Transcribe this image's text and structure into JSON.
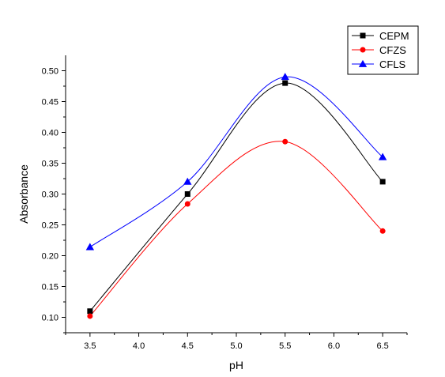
{
  "chart_data": {
    "type": "line",
    "title": "",
    "xlabel": "pH",
    "ylabel": "Absorbance",
    "xlim": [
      3.25,
      6.75
    ],
    "ylim": [
      0.075,
      0.525
    ],
    "x_ticks": [
      "3.5",
      "4.0",
      "4.5",
      "5.0",
      "5.5",
      "6.0",
      "6.5"
    ],
    "y_ticks": [
      "0.10",
      "0.15",
      "0.20",
      "0.25",
      "0.30",
      "0.35",
      "0.40",
      "0.45",
      "0.50"
    ],
    "grid": false,
    "legend_position": "top-right",
    "x": [
      3.5,
      4.5,
      5.5,
      6.5
    ],
    "series": [
      {
        "name": "CEPM",
        "values": [
          0.11,
          0.3,
          0.48,
          0.32
        ],
        "color": "#000000",
        "marker": "square"
      },
      {
        "name": "CFZS",
        "values": [
          0.102,
          0.284,
          0.385,
          0.24
        ],
        "color": "#ff0000",
        "marker": "circle"
      },
      {
        "name": "CFLS",
        "values": [
          0.214,
          0.32,
          0.49,
          0.36
        ],
        "color": "#0000ff",
        "marker": "triangle"
      }
    ]
  }
}
